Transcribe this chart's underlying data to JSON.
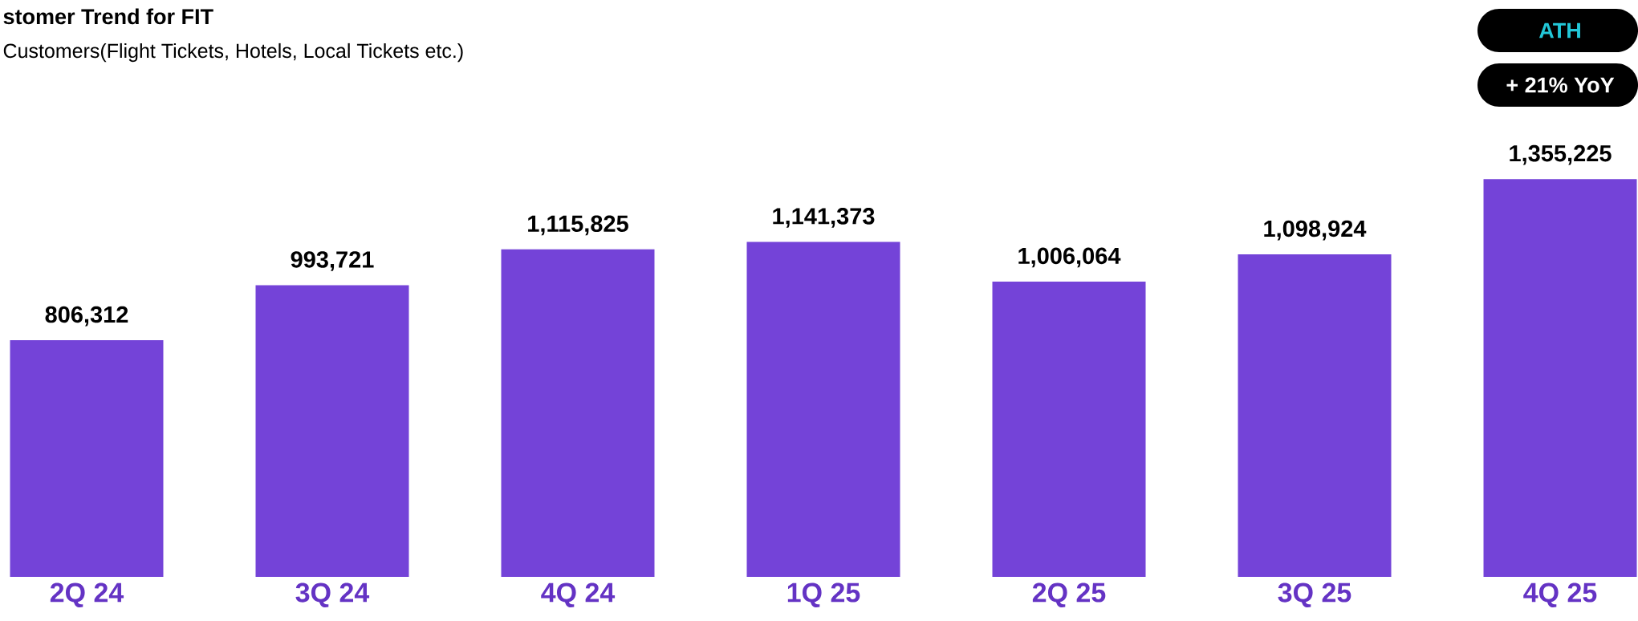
{
  "chart_data": {
    "type": "bar",
    "title": "stomer Trend for FIT",
    "subtitle": "Customers(Flight Tickets, Hotels, Local Tickets etc.)",
    "categories": [
      "2Q 24",
      "3Q 24",
      "4Q 24",
      "1Q 25",
      "2Q 25",
      "3Q 25",
      "4Q 25"
    ],
    "values": [
      806312,
      993721,
      1115825,
      1141373,
      1006064,
      1098924,
      1355225
    ],
    "value_labels": [
      "806,312",
      "993,721",
      "1,115,825",
      "1,141,373",
      "1,006,064",
      "1,098,924",
      "1,355,225"
    ],
    "color": "#7443d8",
    "annotations": [
      "ATH",
      "+ 21% YoY"
    ]
  }
}
